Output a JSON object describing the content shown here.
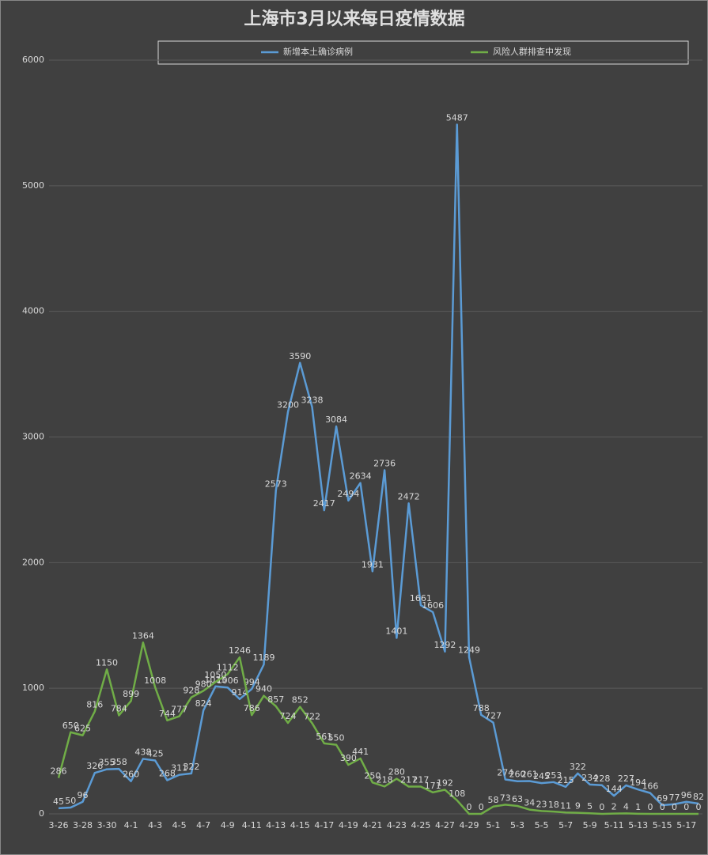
{
  "chart_data": {
    "type": "line",
    "title": "上海市3月以来每日疫情数据",
    "categories": [
      "3-26",
      null,
      "3-28",
      null,
      "3-30",
      null,
      "4-1",
      null,
      "4-3",
      null,
      "4-5",
      null,
      "4-7",
      null,
      "4-9",
      null,
      "4-11",
      null,
      "4-13",
      null,
      "4-15",
      null,
      "4-17",
      null,
      "4-19",
      null,
      "4-21",
      null,
      "4-23",
      null,
      "4-25",
      null,
      "4-27",
      null,
      "4-29",
      null,
      "5-1",
      null,
      "5-3",
      null,
      "5-5",
      null,
      "5-7",
      null,
      "5-9",
      null,
      "5-11",
      null,
      "5-13",
      null,
      "5-15",
      null,
      "5-17",
      null
    ],
    "series": [
      {
        "name": "新增本土确诊病例",
        "color": "#5b9bd5",
        "values": [
          45,
          50,
          96,
          326,
          355,
          358,
          260,
          438,
          425,
          268,
          311,
          322,
          824,
          1015,
          1006,
          914,
          994,
          1189,
          2573,
          3200,
          3590,
          3238,
          2417,
          3084,
          2494,
          2634,
          1931,
          2736,
          1401,
          2472,
          1661,
          1606,
          1292,
          5487,
          1249,
          788,
          727,
          274,
          260,
          261,
          245,
          253,
          215,
          322,
          234,
          228,
          144,
          227,
          194,
          166,
          69,
          77,
          96,
          82
        ]
      },
      {
        "name": "风险人群排查中发现",
        "color": "#70ad47",
        "values": [
          286,
          650,
          625,
          816,
          1150,
          784,
          899,
          1364,
          1008,
          744,
          777,
          928,
          980,
          1050,
          1112,
          1246,
          786,
          940,
          857,
          724,
          852,
          722,
          561,
          550,
          390,
          441,
          250,
          218,
          280,
          217,
          217,
          171,
          192,
          108,
          0,
          0,
          58,
          73,
          63,
          34,
          23,
          18,
          11,
          9,
          5,
          0,
          2,
          4,
          1,
          0,
          0,
          0,
          0,
          0
        ]
      }
    ],
    "ylim": [
      0,
      6000
    ],
    "yticks": [
      0,
      1000,
      2000,
      3000,
      4000,
      5000,
      6000
    ],
    "grid": true
  }
}
